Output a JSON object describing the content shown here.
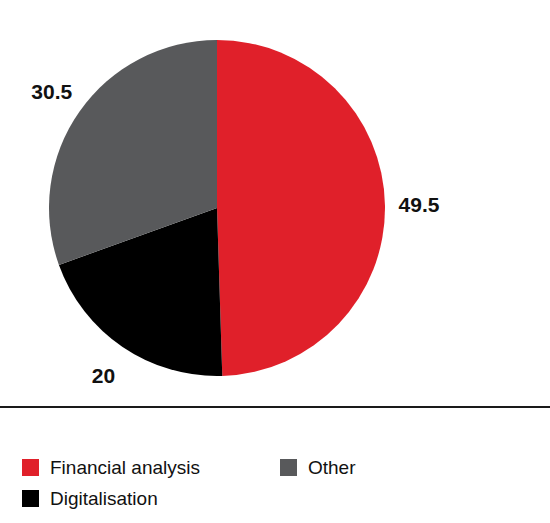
{
  "chart_data": {
    "type": "pie",
    "categories": [
      "Financial analysis",
      "Digitalisation",
      "Other"
    ],
    "values": [
      49.5,
      20,
      30.5
    ],
    "colors": [
      "#e0202a",
      "#000000",
      "#58595b"
    ],
    "data_labels": true,
    "legend": "bottom"
  }
}
